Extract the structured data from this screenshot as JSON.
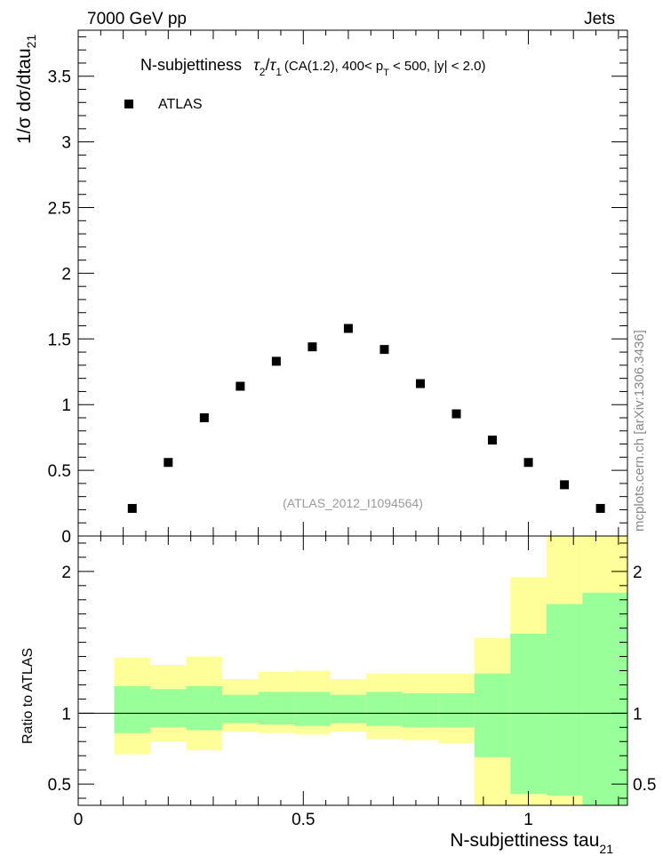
{
  "header": {
    "left_label": "7000 GeV pp",
    "right_label": "Jets"
  },
  "side_label": "mcplots.cern.ch [arXiv:1306.3436]",
  "chart_data": {
    "type": "scatter",
    "title_parts": {
      "lead": "N-subjettiness",
      "tau_a": "τ",
      "tau_a_sub": "2",
      "slash": "/",
      "tau_b": "τ",
      "tau_b_sub": "1",
      "mid": "(CA(1.2), 400< p",
      "pt_sub": "T",
      "tail": "< 500, |y| < 2.0)"
    },
    "watermark": "(ATLAS_2012_I1094564)",
    "xlabel_main": "N-subjettiness tau",
    "xlabel_sub": "21",
    "ylabel_main": "1/σ dσ/dtau",
    "ylabel_sub": "21",
    "ratio_ylabel": "Ratio to ATLAS",
    "xlim": [
      0,
      1.22
    ],
    "ylim": [
      0,
      3.85
    ],
    "ratio_ylim": [
      0.35,
      2.25
    ],
    "x_ticks": [
      {
        "v": 0,
        "label": "0"
      },
      {
        "v": 0.5,
        "label": "0.5"
      },
      {
        "v": 1,
        "label": "1"
      }
    ],
    "y_ticks": [
      {
        "v": 0,
        "label": "0"
      },
      {
        "v": 0.5,
        "label": "0.5"
      },
      {
        "v": 1,
        "label": "1"
      },
      {
        "v": 1.5,
        "label": "1.5"
      },
      {
        "v": 2,
        "label": "2"
      },
      {
        "v": 2.5,
        "label": "2.5"
      },
      {
        "v": 3,
        "label": "3"
      },
      {
        "v": 3.5,
        "label": "3.5"
      }
    ],
    "ratio_ticks": [
      {
        "v": 0.5,
        "label": "0.5"
      },
      {
        "v": 1,
        "label": "1"
      },
      {
        "v": 2,
        "label": "2"
      }
    ],
    "series": [
      {
        "name": "ATLAS",
        "color": "#000000",
        "x": [
          0.12,
          0.2,
          0.28,
          0.36,
          0.44,
          0.52,
          0.6,
          0.68,
          0.76,
          0.84,
          0.92,
          1.0,
          1.08,
          1.16
        ],
        "y": [
          0.21,
          0.56,
          0.9,
          1.14,
          1.33,
          1.44,
          1.58,
          1.42,
          1.16,
          0.93,
          0.73,
          0.56,
          0.39,
          0.21
        ]
      }
    ],
    "bin_edges": [
      0.08,
      0.16,
      0.24,
      0.32,
      0.4,
      0.48,
      0.56,
      0.64,
      0.72,
      0.8,
      0.88,
      0.96,
      1.04,
      1.12,
      1.22
    ],
    "bands": [
      {
        "name": "outer",
        "color": "#ffff99",
        "lo": [
          0.71,
          0.8,
          0.74,
          0.87,
          0.86,
          0.85,
          0.87,
          0.82,
          0.81,
          0.79,
          0.35,
          0.35,
          0.35,
          0.35
        ],
        "hi": [
          1.39,
          1.34,
          1.4,
          1.24,
          1.29,
          1.3,
          1.24,
          1.28,
          1.28,
          1.28,
          1.53,
          1.96,
          2.25,
          2.25
        ]
      },
      {
        "name": "inner",
        "color": "#99ff99",
        "lo": [
          0.86,
          0.9,
          0.88,
          0.93,
          0.92,
          0.91,
          0.93,
          0.91,
          0.9,
          0.9,
          0.69,
          0.43,
          0.42,
          0.35
        ],
        "hi": [
          1.19,
          1.17,
          1.19,
          1.13,
          1.15,
          1.15,
          1.13,
          1.15,
          1.14,
          1.14,
          1.28,
          1.56,
          1.77,
          1.85
        ]
      }
    ],
    "reference_line": 1
  }
}
